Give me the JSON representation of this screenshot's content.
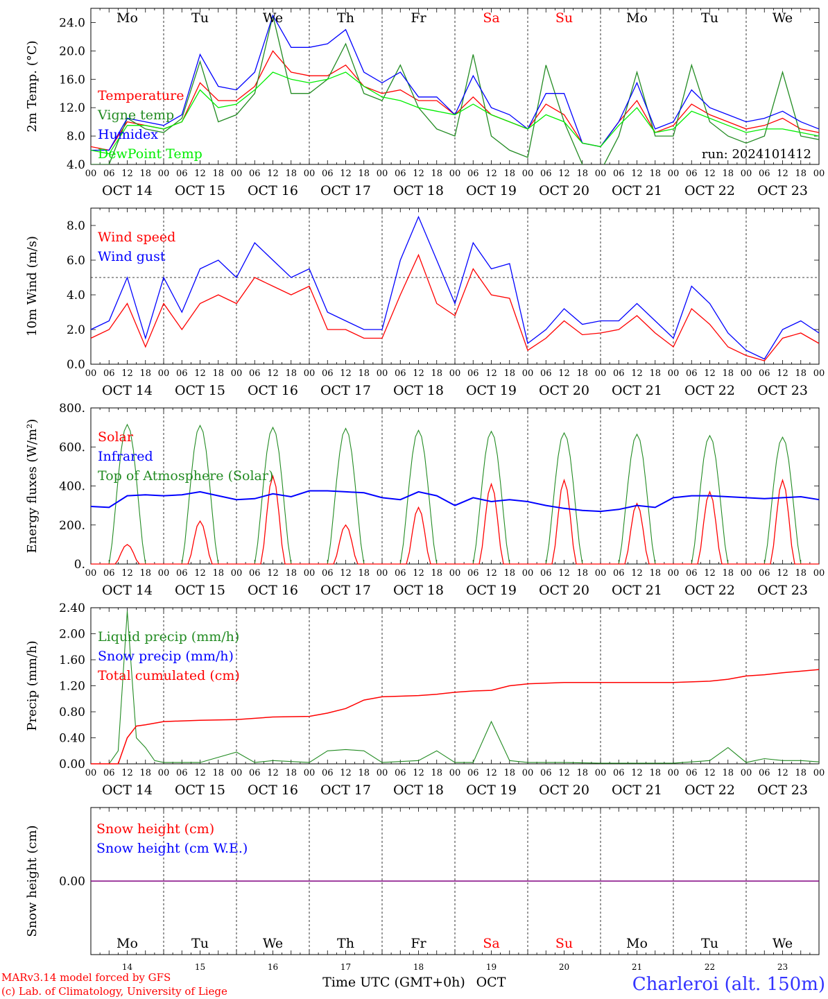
{
  "days": [
    "Mo",
    "Tu",
    "We",
    "Th",
    "Fr",
    "Sa",
    "Su",
    "Mo",
    "Tu",
    "We"
  ],
  "day_colors": [
    "#000000",
    "#000000",
    "#000000",
    "#000000",
    "#000000",
    "#ff0000",
    "#ff0000",
    "#000000",
    "#000000",
    "#000000"
  ],
  "date_labels": [
    "OCT 14",
    "OCT 15",
    "OCT 16",
    "OCT 17",
    "OCT 18",
    "OCT 19",
    "OCT 20",
    "OCT 21",
    "OCT 22",
    "OCT 23"
  ],
  "day_numbers": [
    "14",
    "15",
    "16",
    "17",
    "18",
    "19",
    "20",
    "21",
    "22",
    "23"
  ],
  "hour_ticks": [
    "00",
    "06",
    "12",
    "18"
  ],
  "hour_end": "00",
  "run_label": "run: 2024101412",
  "footer": {
    "model": "MARv3.14 model forced by GFS",
    "lab": "(c) Lab. of Climatology, University of Liege",
    "xlabel": "Time UTC (GMT+0h)",
    "month": "OCT",
    "station": "Charleroi (alt. 150m)"
  },
  "colors": {
    "red": "#ff0000",
    "green": "#228b22",
    "blue": "#0000ff",
    "lightgreen": "#00ee00",
    "purple": "#800080"
  },
  "chart_data": [
    {
      "type": "line",
      "ylabel": "2m Temp. (°C)",
      "ylim": [
        4,
        26
      ],
      "yticks": [
        "4.0",
        "8.0",
        "12.0",
        "16.0",
        "20.0",
        "24.0"
      ],
      "x": [
        0,
        6,
        12,
        18,
        24,
        30,
        36,
        42,
        48,
        54,
        60,
        66,
        72,
        78,
        84,
        90,
        96,
        102,
        108,
        114,
        120,
        126,
        132,
        138,
        144,
        150,
        156,
        162,
        168,
        174,
        180,
        186,
        192,
        198,
        204,
        210,
        216,
        222,
        228,
        234,
        240
      ],
      "series": [
        {
          "name": "Temperature",
          "color": "#ff0000",
          "values": [
            6.5,
            6,
            10,
            9.5,
            9,
            10,
            15.5,
            13,
            13,
            15,
            20,
            17,
            16.5,
            16.5,
            18,
            15,
            14,
            14.5,
            13,
            13,
            11,
            13.5,
            11,
            10,
            9,
            12.5,
            11,
            7,
            6.5,
            10,
            13,
            8.5,
            9.5,
            12.5,
            11,
            10,
            9,
            9.5,
            10.5,
            9,
            8.5
          ]
        },
        {
          "name": "Vigne temp",
          "color": "#228b22",
          "values": [
            4,
            4,
            10.5,
            9,
            8.5,
            10.5,
            18.5,
            10,
            11,
            14,
            25,
            14,
            14,
            16,
            21,
            14,
            13,
            18,
            12,
            9,
            8,
            19.5,
            8,
            6,
            5,
            18,
            10,
            4,
            3,
            8,
            17,
            8,
            8,
            18,
            10,
            8,
            7,
            8,
            17,
            8,
            7.5
          ]
        },
        {
          "name": "Humidex",
          "color": "#0000ff",
          "values": [
            6,
            6,
            10.5,
            10,
            9.5,
            11,
            19.5,
            15,
            14.5,
            17,
            25,
            20.5,
            20.5,
            21,
            23,
            17,
            15.5,
            17,
            13.5,
            13.5,
            11,
            16.5,
            12,
            11,
            9,
            14,
            14,
            7,
            6.5,
            10,
            15.5,
            9,
            10,
            14.5,
            12,
            11,
            10,
            10.5,
            11.5,
            10,
            9
          ]
        },
        {
          "name": "DewPoint Temp",
          "color": "#00ee00",
          "values": [
            6,
            5.5,
            9.5,
            9.5,
            9,
            10,
            14.5,
            12,
            12.5,
            14.5,
            17,
            16,
            15.5,
            16,
            17,
            15,
            13.5,
            13,
            12,
            11.5,
            11,
            12.5,
            11,
            10,
            9,
            11,
            10,
            7,
            6.5,
            9.5,
            12,
            8.5,
            9,
            11.5,
            10.5,
            9.5,
            8.5,
            9,
            9,
            8.5,
            8
          ]
        }
      ]
    },
    {
      "type": "line",
      "ylabel": "10m Wind (m/s)",
      "ylim": [
        0,
        9
      ],
      "yticks": [
        "0.0",
        "2.0",
        "4.0",
        "6.0",
        "8.0"
      ],
      "x": [
        0,
        6,
        12,
        18,
        24,
        30,
        36,
        42,
        48,
        54,
        60,
        66,
        72,
        78,
        84,
        90,
        96,
        102,
        108,
        114,
        120,
        126,
        132,
        138,
        144,
        150,
        156,
        162,
        168,
        174,
        180,
        186,
        192,
        198,
        204,
        210,
        216,
        222,
        228,
        234,
        240
      ],
      "series": [
        {
          "name": "Wind speed",
          "color": "#ff0000",
          "values": [
            1.5,
            2,
            3.5,
            1,
            3.5,
            2,
            3.5,
            4,
            3.5,
            5,
            4.5,
            4,
            4.5,
            2,
            2,
            1.5,
            1.5,
            4,
            6.3,
            3.5,
            2.8,
            5.5,
            4,
            3.8,
            0.8,
            1.5,
            2.5,
            1.7,
            1.8,
            2,
            2.8,
            1.8,
            1,
            3.2,
            2.3,
            1,
            0.5,
            0.2,
            1.5,
            1.8,
            1.2
          ]
        },
        {
          "name": "Wind gust",
          "color": "#0000ff",
          "values": [
            2,
            2.5,
            5,
            1.5,
            5,
            3,
            5.5,
            6,
            5,
            7,
            6,
            5,
            5.5,
            3,
            2.5,
            2,
            2,
            6,
            8.5,
            6,
            3.5,
            7,
            5.5,
            5.8,
            1.2,
            2,
            3.2,
            2.3,
            2.5,
            2.5,
            3.5,
            2.5,
            1.5,
            4.5,
            3.5,
            1.8,
            0.8,
            0.3,
            2,
            2.5,
            1.8
          ]
        }
      ],
      "reference_line": 5
    },
    {
      "type": "line",
      "ylabel": "Energy fluxes (W/m²)",
      "ylim": [
        0,
        800
      ],
      "yticks": [
        "0.",
        "200.",
        "400.",
        "600.",
        "800."
      ],
      "series": [
        {
          "name": "Solar",
          "color": "#ff0000",
          "daily_peak": [
            100,
            220,
            450,
            200,
            290,
            410,
            430,
            310,
            370,
            430
          ]
        },
        {
          "name": "Infrared",
          "color": "#0000ff",
          "x": [
            0,
            6,
            12,
            18,
            24,
            30,
            36,
            42,
            48,
            54,
            60,
            66,
            72,
            78,
            84,
            90,
            96,
            102,
            108,
            114,
            120,
            126,
            132,
            138,
            144,
            150,
            156,
            162,
            168,
            174,
            180,
            186,
            192,
            198,
            204,
            210,
            216,
            222,
            228,
            234,
            240
          ],
          "values": [
            295,
            290,
            350,
            355,
            350,
            355,
            370,
            350,
            330,
            335,
            360,
            345,
            375,
            375,
            370,
            365,
            340,
            330,
            370,
            350,
            300,
            340,
            320,
            330,
            320,
            300,
            285,
            275,
            270,
            280,
            300,
            290,
            340,
            350,
            350,
            345,
            340,
            335,
            340,
            345,
            330
          ]
        },
        {
          "name": "Top of Atmosphere (Solar)",
          "color": "#228b22",
          "daily_peak": [
            715,
            710,
            700,
            695,
            685,
            680,
            672,
            665,
            658,
            650
          ]
        }
      ]
    },
    {
      "type": "line",
      "ylabel": "Precip (mm/h)",
      "ylim": [
        0,
        2.4
      ],
      "yticks": [
        "0.00",
        "0.40",
        "0.80",
        "1.20",
        "1.60",
        "2.00",
        "2.40"
      ],
      "series": [
        {
          "name": "Liquid precip (mm/h)",
          "color": "#228b22",
          "x": [
            0,
            6,
            9,
            12,
            15,
            18,
            21,
            24,
            36,
            48,
            54,
            60,
            72,
            78,
            84,
            90,
            96,
            108,
            114,
            120,
            126,
            132,
            138,
            144,
            150,
            156,
            168,
            180,
            192,
            204,
            210,
            216,
            222,
            228,
            234,
            240
          ],
          "values": [
            0,
            0,
            0.2,
            2.35,
            0.4,
            0.25,
            0.05,
            0.02,
            0.02,
            0.18,
            0.02,
            0.05,
            0.02,
            0.2,
            0.22,
            0.2,
            0.02,
            0.05,
            0.2,
            0.02,
            0.02,
            0.65,
            0.05,
            0.02,
            0.02,
            0.02,
            0.01,
            0.01,
            0.01,
            0.05,
            0.25,
            0.02,
            0.08,
            0.05,
            0.05,
            0.03
          ]
        },
        {
          "name": "Snow precip (mm/h)",
          "color": "#0000ff",
          "values": []
        },
        {
          "name": "Total cumulated (cm)",
          "color": "#ff0000",
          "x": [
            0,
            9,
            12,
            15,
            18,
            24,
            36,
            48,
            60,
            72,
            78,
            84,
            90,
            96,
            108,
            114,
            120,
            126,
            132,
            138,
            144,
            150,
            156,
            168,
            180,
            192,
            204,
            210,
            216,
            222,
            228,
            240
          ],
          "values": [
            0,
            0,
            0.4,
            0.58,
            0.6,
            0.65,
            0.67,
            0.68,
            0.72,
            0.73,
            0.78,
            0.85,
            0.98,
            1.03,
            1.05,
            1.07,
            1.1,
            1.12,
            1.13,
            1.2,
            1.23,
            1.24,
            1.25,
            1.25,
            1.25,
            1.25,
            1.27,
            1.3,
            1.35,
            1.37,
            1.4,
            1.45
          ]
        }
      ]
    },
    {
      "type": "line",
      "ylabel": "Snow height (cm)",
      "yticks": [
        "0.00"
      ],
      "series": [
        {
          "name": "Snow height (cm)",
          "color": "#ff0000",
          "values": [
            0,
            0
          ]
        },
        {
          "name": "Snow height (cm W.E.)",
          "color": "#0000ff",
          "values": [
            0,
            0
          ]
        }
      ]
    }
  ]
}
